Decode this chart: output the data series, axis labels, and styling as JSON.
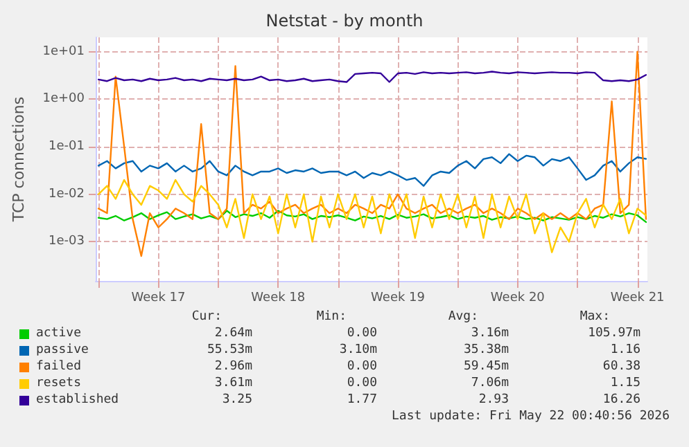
{
  "chart_data": {
    "type": "line",
    "title": "Netstat - by month",
    "ylabel": "TCP connections",
    "log": "y",
    "grid": true,
    "legend": "bottom",
    "marker": "none",
    "line_style": "solid",
    "ylim": [
      0.00015,
      20
    ],
    "yticks": [
      {
        "value": 0.001,
        "label": "1e-03"
      },
      {
        "value": 0.01,
        "label": "1e-02"
      },
      {
        "value": 0.1,
        "label": "1e-01"
      },
      {
        "value": 1,
        "label": "1e+00"
      },
      {
        "value": 10,
        "label": "1e+01"
      }
    ],
    "xlim": [
      "2026-04-19T20:00",
      "2026-05-22T02:00"
    ],
    "xticks": [
      {
        "value": "2026-04-20T00:00",
        "label": null
      },
      {
        "value": "2026-04-23T12:00",
        "label": "Week 17"
      },
      {
        "value": "2026-04-27T00:00",
        "label": null
      },
      {
        "value": "2026-04-30T12:00",
        "label": "Week 18"
      },
      {
        "value": "2026-05-04T00:00",
        "label": null
      },
      {
        "value": "2026-05-07T12:00",
        "label": "Week 19"
      },
      {
        "value": "2026-05-11T00:00",
        "label": null
      },
      {
        "value": "2026-05-14T12:00",
        "label": "Week 20"
      },
      {
        "value": "2026-05-18T00:00",
        "label": null
      },
      {
        "value": "2026-05-21T12:00",
        "label": "Week 21"
      }
    ],
    "x": [
      "2026-04-20T00:00",
      "2026-04-20T12:00",
      "2026-04-21T00:00",
      "2026-04-21T12:00",
      "2026-04-22T00:00",
      "2026-04-22T12:00",
      "2026-04-23T00:00",
      "2026-04-23T12:00",
      "2026-04-24T00:00",
      "2026-04-24T12:00",
      "2026-04-25T00:00",
      "2026-04-25T12:00",
      "2026-04-26T00:00",
      "2026-04-26T12:00",
      "2026-04-27T00:00",
      "2026-04-27T12:00",
      "2026-04-28T00:00",
      "2026-04-28T12:00",
      "2026-04-29T00:00",
      "2026-04-29T12:00",
      "2026-04-30T00:00",
      "2026-04-30T12:00",
      "2026-05-01T00:00",
      "2026-05-01T12:00",
      "2026-05-02T00:00",
      "2026-05-02T12:00",
      "2026-05-03T00:00",
      "2026-05-03T12:00",
      "2026-05-04T00:00",
      "2026-05-04T12:00",
      "2026-05-05T00:00",
      "2026-05-05T12:00",
      "2026-05-06T00:00",
      "2026-05-06T12:00",
      "2026-05-07T00:00",
      "2026-05-07T12:00",
      "2026-05-08T00:00",
      "2026-05-08T12:00",
      "2026-05-09T00:00",
      "2026-05-09T12:00",
      "2026-05-10T00:00",
      "2026-05-10T12:00",
      "2026-05-11T00:00",
      "2026-05-11T12:00",
      "2026-05-12T00:00",
      "2026-05-12T12:00",
      "2026-05-13T00:00",
      "2026-05-13T12:00",
      "2026-05-14T00:00",
      "2026-05-14T12:00",
      "2026-05-15T00:00",
      "2026-05-15T12:00",
      "2026-05-16T00:00",
      "2026-05-16T12:00",
      "2026-05-17T00:00",
      "2026-05-17T12:00",
      "2026-05-18T00:00",
      "2026-05-18T12:00",
      "2026-05-19T00:00",
      "2026-05-19T12:00",
      "2026-05-20T00:00",
      "2026-05-20T12:00",
      "2026-05-21T00:00",
      "2026-05-21T12:00",
      "2026-05-22T00:00"
    ],
    "series": [
      {
        "name": "active",
        "color": "#00cc00",
        "values": [
          0.0032,
          0.003,
          0.0035,
          0.0028,
          0.0033,
          0.004,
          0.003,
          0.0036,
          0.0042,
          0.003,
          0.0034,
          0.0038,
          0.0031,
          0.0035,
          0.003,
          0.0045,
          0.0033,
          0.0038,
          0.0035,
          0.004,
          0.0032,
          0.0045,
          0.0036,
          0.0034,
          0.0038,
          0.003,
          0.0035,
          0.0033,
          0.0036,
          0.0032,
          0.0028,
          0.0034,
          0.0031,
          0.0035,
          0.003,
          0.0037,
          0.0032,
          0.0034,
          0.0038,
          0.0031,
          0.0033,
          0.0036,
          0.003,
          0.0034,
          0.0032,
          0.0035,
          0.0029,
          0.0033,
          0.0031,
          0.0034,
          0.003,
          0.0032,
          0.0028,
          0.0033,
          0.0031,
          0.0029,
          0.0033,
          0.003,
          0.0035,
          0.0032,
          0.0038,
          0.0034,
          0.004,
          0.0036,
          0.0026
        ]
      },
      {
        "name": "passive",
        "color": "#0066b3",
        "values": [
          0.04,
          0.05,
          0.035,
          0.045,
          0.05,
          0.03,
          0.04,
          0.035,
          0.045,
          0.03,
          0.04,
          0.03,
          0.035,
          0.05,
          0.03,
          0.025,
          0.04,
          0.03,
          0.025,
          0.03,
          0.03,
          0.035,
          0.028,
          0.032,
          0.03,
          0.035,
          0.028,
          0.03,
          0.03,
          0.025,
          0.03,
          0.022,
          0.028,
          0.025,
          0.03,
          0.025,
          0.02,
          0.022,
          0.015,
          0.025,
          0.03,
          0.028,
          0.04,
          0.05,
          0.035,
          0.055,
          0.06,
          0.045,
          0.07,
          0.05,
          0.065,
          0.06,
          0.04,
          0.055,
          0.05,
          0.06,
          0.035,
          0.02,
          0.025,
          0.04,
          0.05,
          0.03,
          0.045,
          0.06,
          0.0555
        ]
      },
      {
        "name": "failed",
        "color": "#ff8000",
        "values": [
          0.005,
          0.004,
          3.0,
          0.1,
          0.003,
          0.0005,
          0.004,
          0.002,
          0.003,
          0.005,
          0.004,
          0.003,
          0.3,
          0.004,
          0.003,
          0.005,
          5.0,
          0.004,
          0.006,
          0.005,
          0.007,
          0.004,
          0.005,
          0.006,
          0.004,
          0.005,
          0.006,
          0.004,
          0.005,
          0.004,
          0.006,
          0.005,
          0.004,
          0.006,
          0.005,
          0.01,
          0.005,
          0.004,
          0.005,
          0.006,
          0.004,
          0.005,
          0.004,
          0.005,
          0.006,
          0.004,
          0.005,
          0.004,
          0.003,
          0.005,
          0.004,
          0.003,
          0.004,
          0.003,
          0.004,
          0.003,
          0.004,
          0.003,
          0.005,
          0.006,
          0.9,
          0.004,
          0.006,
          10,
          0.003
        ]
      },
      {
        "name": "resets",
        "color": "#ffcc00",
        "values": [
          0.01,
          0.015,
          0.008,
          0.02,
          0.01,
          0.006,
          0.015,
          0.012,
          0.008,
          0.02,
          0.01,
          0.007,
          0.015,
          0.01,
          0.006,
          0.002,
          0.008,
          0.0012,
          0.01,
          0.003,
          0.009,
          0.0015,
          0.01,
          0.002,
          0.01,
          0.001,
          0.009,
          0.002,
          0.01,
          0.003,
          0.01,
          0.002,
          0.009,
          0.0015,
          0.01,
          0.003,
          0.01,
          0.0012,
          0.009,
          0.002,
          0.01,
          0.003,
          0.01,
          0.002,
          0.009,
          0.0012,
          0.01,
          0.002,
          0.009,
          0.003,
          0.01,
          0.0015,
          0.004,
          0.0006,
          0.002,
          0.001,
          0.004,
          0.008,
          0.002,
          0.006,
          0.003,
          0.008,
          0.0015,
          0.005,
          0.0036
        ]
      },
      {
        "name": "established",
        "color": "#330099",
        "values": [
          2.6,
          2.4,
          2.8,
          2.5,
          2.6,
          2.4,
          2.7,
          2.5,
          2.6,
          2.8,
          2.5,
          2.6,
          2.4,
          2.7,
          2.6,
          2.5,
          2.7,
          2.5,
          2.6,
          3.0,
          2.5,
          2.6,
          2.4,
          2.5,
          2.7,
          2.4,
          2.5,
          2.6,
          2.4,
          2.3,
          3.4,
          3.5,
          3.6,
          3.5,
          2.3,
          3.5,
          3.6,
          3.4,
          3.7,
          3.5,
          3.6,
          3.5,
          3.6,
          3.7,
          3.5,
          3.6,
          3.8,
          3.6,
          3.5,
          3.7,
          3.6,
          3.5,
          3.6,
          3.7,
          3.6,
          3.6,
          3.5,
          3.7,
          3.6,
          2.5,
          2.4,
          2.5,
          2.4,
          2.6,
          3.25
        ]
      }
    ],
    "annotations": [
      "Cur:",
      "Min:",
      "Avg:",
      "Max:",
      "2.64m",
      "0.00",
      "3.16m",
      "105.97m",
      "55.53m",
      "3.10m",
      "35.38m",
      "1.16",
      "2.96m",
      "0.00",
      "59.45m",
      "60.38",
      "3.61m",
      "0.00",
      "7.06m",
      "1.15",
      "3.25",
      "1.77",
      "2.93",
      "16.26",
      "Last update: Fri May 22 00:40:56 2026"
    ]
  }
}
